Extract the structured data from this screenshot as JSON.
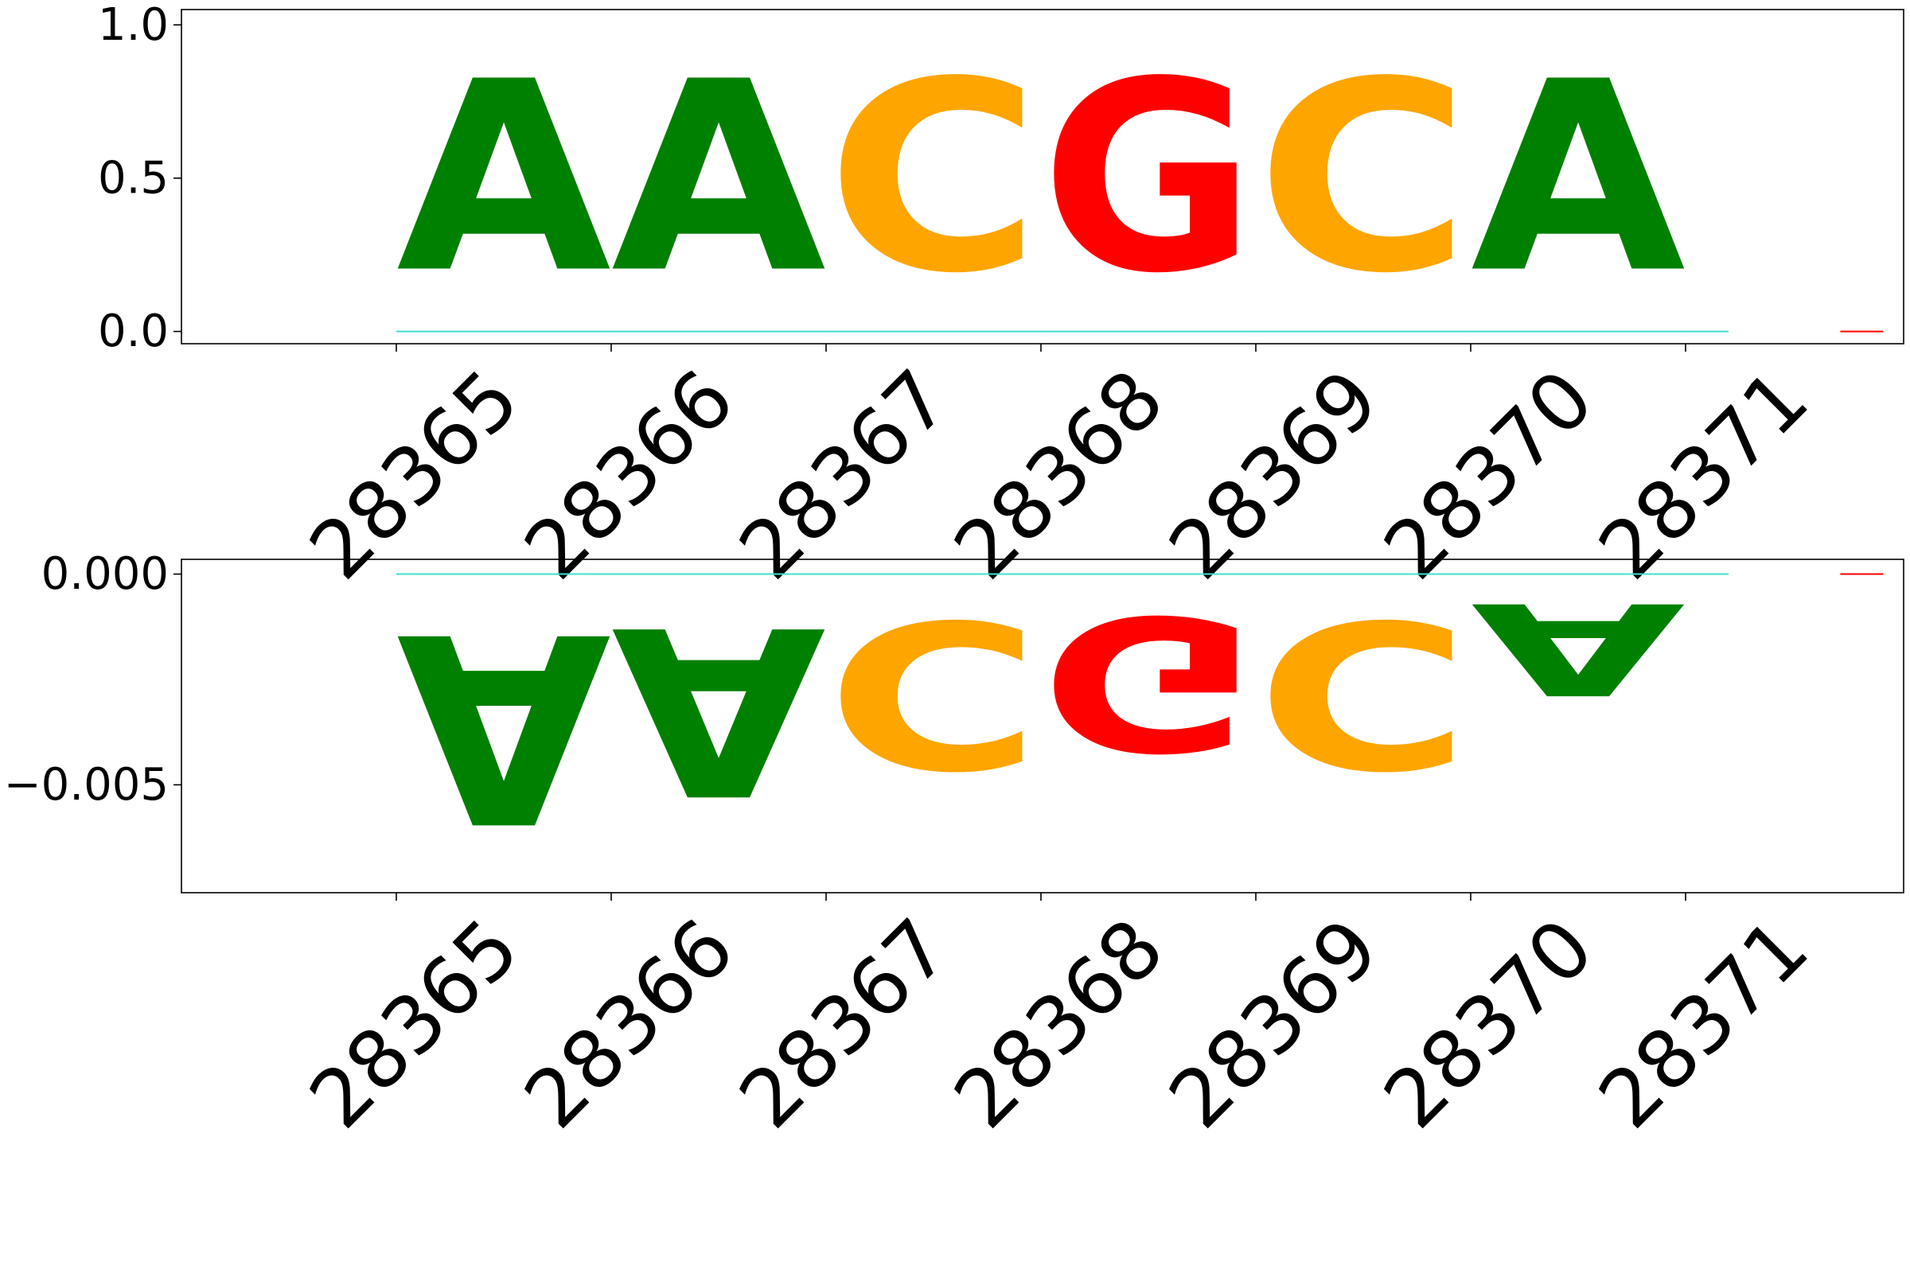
{
  "chart_data": [
    {
      "type": "sequence-logo",
      "title": "",
      "xlabel": "",
      "ylabel": "",
      "positions": [
        "28365",
        "28366",
        "28367",
        "28368",
        "28369",
        "28370",
        "28371"
      ],
      "ylim": [
        -0.04,
        1.05
      ],
      "yticks": [
        0.0,
        0.5,
        1.0
      ],
      "ytick_labels": [
        "0.0",
        "0.5",
        "1.0"
      ],
      "letters": [
        {
          "position": "28365",
          "base": "A",
          "value": 1.0
        },
        {
          "position": "28366",
          "base": "A",
          "value": 1.0
        },
        {
          "position": "28367",
          "base": "C",
          "value": 1.0
        },
        {
          "position": "28368",
          "base": "G",
          "value": 1.0
        },
        {
          "position": "28369",
          "base": "C",
          "value": 1.0
        },
        {
          "position": "28370",
          "base": "A",
          "value": 1.0
        },
        {
          "position": "28371",
          "base": "G",
          "value": 0.0
        }
      ],
      "baseline": 0.0
    },
    {
      "type": "sequence-logo",
      "title": "",
      "xlabel": "",
      "ylabel": "",
      "positions": [
        "28365",
        "28366",
        "28367",
        "28368",
        "28369",
        "28370",
        "28371"
      ],
      "ylim": [
        -0.00756,
        0.00035
      ],
      "yticks": [
        0.0,
        -0.005
      ],
      "ytick_labels": [
        "0.000",
        "−0.005"
      ],
      "letters": [
        {
          "position": "28365",
          "base": "A",
          "value": -0.0072
        },
        {
          "position": "28366",
          "base": "A",
          "value": -0.0064
        },
        {
          "position": "28367",
          "base": "C",
          "value": -0.0056
        },
        {
          "position": "28368",
          "base": "G",
          "value": -0.0051
        },
        {
          "position": "28369",
          "base": "C",
          "value": -0.0056
        },
        {
          "position": "28370",
          "base": "A",
          "value": -0.0035
        },
        {
          "position": "28371",
          "base": "G",
          "value": 0.0
        }
      ],
      "baseline": 0.0
    }
  ],
  "colors": {
    "A": "#008000",
    "C": "#ffa500",
    "G": "#ff0000",
    "T": "#00ced1",
    "baseline": "#40e0d0",
    "axis": "#000000"
  }
}
